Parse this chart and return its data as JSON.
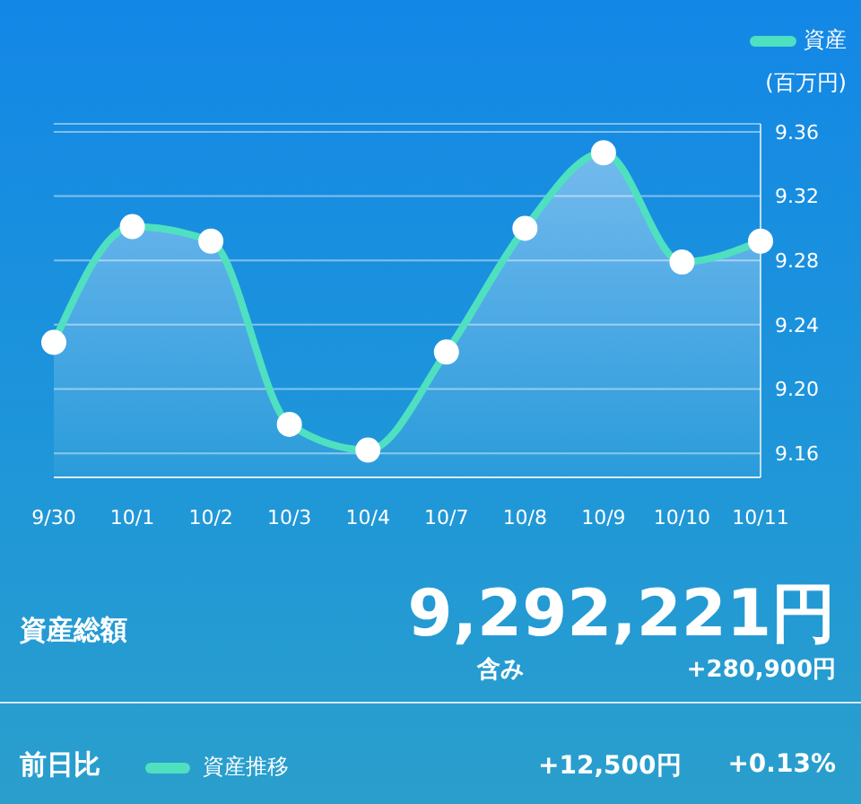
{
  "chart_data": {
    "type": "area",
    "ylabel": "(百万円)",
    "categories": [
      "9/30",
      "10/1",
      "10/2",
      "10/3",
      "10/4",
      "10/7",
      "10/8",
      "10/9",
      "10/10",
      "10/11"
    ],
    "series": [
      {
        "name": "資産",
        "color": "#4fe0c0",
        "values": [
          9.229,
          9.301,
          9.292,
          9.178,
          9.162,
          9.223,
          9.3,
          9.347,
          9.279,
          9.292
        ]
      }
    ],
    "ylim": [
      9.145,
      9.365
    ],
    "yticks": [
      9.16,
      {
        "value": 9.2,
        "label": "9.20"
      },
      9.24,
      9.28,
      9.32,
      9.36
    ],
    "grid": "y",
    "legend": "top right",
    "marker": "circle",
    "line_style": "solid",
    "annotations": [
      "資産総額",
      "9,292,221円",
      "含み",
      "+280,900円",
      "前日比",
      "資産推移",
      "+12,500円",
      "+0.13%"
    ]
  }
}
